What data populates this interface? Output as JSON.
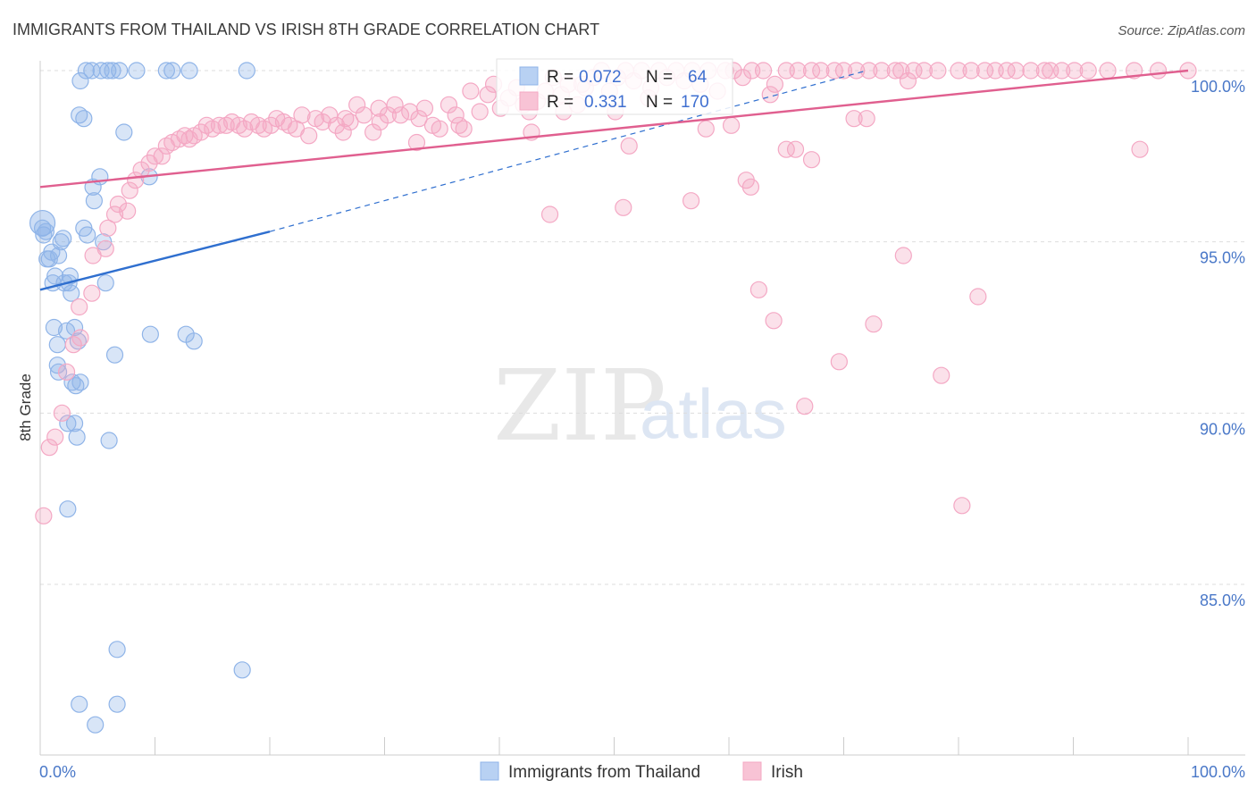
{
  "chart_data": {
    "type": "scatter",
    "title": "IMMIGRANTS FROM THAILAND VS IRISH 8TH GRADE CORRELATION CHART",
    "source": "Source: ZipAtlas.com",
    "xlabel": "",
    "ylabel": "8th Grade",
    "xlim": [
      0,
      100
    ],
    "ylim": [
      80.0,
      100.8
    ],
    "x_tick_labels": [
      "0.0%",
      "100.0%"
    ],
    "y_ticks": [
      {
        "value": 100,
        "label": "100.0%"
      },
      {
        "value": 95,
        "label": "95.0%"
      },
      {
        "value": 90,
        "label": "90.0%"
      },
      {
        "value": 85,
        "label": "85.0%"
      }
    ],
    "watermark": {
      "part1": "ZIP",
      "part2": "atlas"
    },
    "stats": {
      "r_label": "R =",
      "n_label": "N =",
      "rows": [
        {
          "r": "0.072",
          "n": "64"
        },
        {
          "r": "0.331",
          "n": "170"
        }
      ]
    },
    "series": [
      {
        "name": "Immigrants from Thailand",
        "color": "#8fb4e8",
        "line_color": "#2f6fcf",
        "trend": {
          "x0": 0,
          "y0": 93.6,
          "x1": 20,
          "y1": 95.3
        },
        "trend_dashed": {
          "x0": 20,
          "y0": 95.3,
          "x1": 72,
          "y1": 100.0
        },
        "points": [
          [
            0.2,
            95.4
          ],
          [
            0.3,
            95.2
          ],
          [
            0.5,
            95.3
          ],
          [
            0.6,
            94.5
          ],
          [
            0.8,
            94.5
          ],
          [
            1.0,
            94.7
          ],
          [
            1.1,
            93.8
          ],
          [
            1.3,
            94.0
          ],
          [
            1.6,
            94.6
          ],
          [
            1.8,
            95.0
          ],
          [
            2.0,
            95.1
          ],
          [
            2.1,
            93.8
          ],
          [
            2.5,
            93.8
          ],
          [
            2.6,
            94.0
          ],
          [
            2.7,
            93.5
          ],
          [
            1.2,
            92.5
          ],
          [
            1.5,
            92.0
          ],
          [
            2.3,
            92.4
          ],
          [
            3.0,
            92.5
          ],
          [
            3.3,
            92.1
          ],
          [
            1.5,
            91.4
          ],
          [
            1.6,
            91.2
          ],
          [
            2.8,
            90.9
          ],
          [
            3.1,
            90.8
          ],
          [
            3.5,
            90.9
          ],
          [
            2.4,
            89.7
          ],
          [
            3.0,
            89.7
          ],
          [
            3.2,
            89.3
          ],
          [
            6.0,
            89.2
          ],
          [
            2.4,
            87.2
          ],
          [
            3.5,
            99.7
          ],
          [
            4.0,
            100.0
          ],
          [
            4.5,
            100.0
          ],
          [
            5.3,
            100.0
          ],
          [
            5.9,
            100.0
          ],
          [
            6.3,
            100.0
          ],
          [
            6.9,
            100.0
          ],
          [
            8.4,
            100.0
          ],
          [
            11.0,
            100.0
          ],
          [
            11.5,
            100.0
          ],
          [
            13.0,
            100.0
          ],
          [
            18.0,
            100.0
          ],
          [
            3.4,
            98.7
          ],
          [
            3.8,
            98.6
          ],
          [
            7.3,
            98.2
          ],
          [
            5.2,
            96.9
          ],
          [
            4.6,
            96.6
          ],
          [
            4.7,
            96.2
          ],
          [
            9.5,
            96.9
          ],
          [
            3.8,
            95.4
          ],
          [
            4.1,
            95.2
          ],
          [
            5.5,
            95.0
          ],
          [
            5.7,
            93.8
          ],
          [
            9.6,
            92.3
          ],
          [
            12.7,
            92.3
          ],
          [
            13.4,
            92.1
          ],
          [
            6.5,
            91.7
          ],
          [
            6.7,
            83.1
          ],
          [
            17.6,
            82.5
          ],
          [
            3.4,
            81.5
          ],
          [
            6.7,
            81.5
          ],
          [
            4.8,
            80.9
          ]
        ]
      },
      {
        "name": "Irish",
        "color": "#f4a8c4",
        "line_color": "#e05f8f",
        "trend": {
          "x0": 0,
          "y0": 96.6,
          "x1": 100,
          "y1": 100.0
        },
        "points": [
          [
            0.3,
            87.0
          ],
          [
            0.8,
            89.0
          ],
          [
            1.3,
            89.3
          ],
          [
            1.9,
            90.0
          ],
          [
            2.3,
            91.2
          ],
          [
            2.9,
            92.0
          ],
          [
            3.5,
            92.2
          ],
          [
            3.4,
            93.1
          ],
          [
            4.5,
            93.5
          ],
          [
            4.6,
            94.6
          ],
          [
            5.7,
            94.8
          ],
          [
            5.9,
            95.4
          ],
          [
            6.5,
            95.8
          ],
          [
            7.6,
            95.9
          ],
          [
            6.8,
            96.1
          ],
          [
            7.8,
            96.5
          ],
          [
            8.3,
            96.8
          ],
          [
            8.8,
            97.1
          ],
          [
            9.5,
            97.3
          ],
          [
            10.0,
            97.5
          ],
          [
            10.6,
            97.5
          ],
          [
            11.0,
            97.8
          ],
          [
            11.5,
            97.9
          ],
          [
            12.1,
            98.0
          ],
          [
            12.6,
            98.1
          ],
          [
            13.0,
            98.0
          ],
          [
            13.4,
            98.1
          ],
          [
            14.0,
            98.2
          ],
          [
            14.5,
            98.4
          ],
          [
            15.0,
            98.3
          ],
          [
            15.6,
            98.4
          ],
          [
            16.2,
            98.4
          ],
          [
            16.7,
            98.5
          ],
          [
            17.3,
            98.4
          ],
          [
            17.8,
            98.3
          ],
          [
            18.4,
            98.5
          ],
          [
            19.0,
            98.4
          ],
          [
            19.5,
            98.3
          ],
          [
            20.1,
            98.4
          ],
          [
            20.6,
            98.6
          ],
          [
            21.2,
            98.5
          ],
          [
            21.7,
            98.4
          ],
          [
            22.3,
            98.3
          ],
          [
            22.8,
            98.7
          ],
          [
            23.4,
            98.1
          ],
          [
            24.0,
            98.6
          ],
          [
            24.6,
            98.5
          ],
          [
            25.2,
            98.7
          ],
          [
            25.8,
            98.4
          ],
          [
            26.4,
            98.2
          ],
          [
            27.0,
            98.5
          ],
          [
            27.6,
            99.0
          ],
          [
            28.2,
            98.7
          ],
          [
            29.0,
            98.2
          ],
          [
            29.6,
            98.5
          ],
          [
            30.3,
            98.7
          ],
          [
            30.9,
            99.0
          ],
          [
            31.4,
            98.7
          ],
          [
            32.2,
            98.8
          ],
          [
            32.8,
            97.9
          ],
          [
            33.5,
            98.9
          ],
          [
            34.2,
            98.4
          ],
          [
            34.8,
            98.3
          ],
          [
            35.6,
            99.0
          ],
          [
            36.2,
            98.7
          ],
          [
            36.9,
            98.3
          ],
          [
            37.5,
            99.4
          ],
          [
            38.3,
            98.8
          ],
          [
            39.0,
            99.3
          ],
          [
            39.5,
            99.6
          ],
          [
            40.1,
            98.9
          ],
          [
            40.8,
            99.2
          ],
          [
            41.5,
            99.5
          ],
          [
            42.1,
            99.0
          ],
          [
            42.6,
            98.8
          ],
          [
            43.3,
            99.1
          ],
          [
            44.0,
            99.4
          ],
          [
            44.7,
            99.8
          ],
          [
            45.4,
            99.3
          ],
          [
            46.0,
            99.6
          ],
          [
            46.8,
            99.0
          ],
          [
            47.5,
            99.5
          ],
          [
            48.2,
            99.8
          ],
          [
            48.9,
            100.0
          ],
          [
            49.6,
            99.4
          ],
          [
            50.3,
            99.8
          ],
          [
            51.0,
            100.0
          ],
          [
            51.7,
            99.7
          ],
          [
            52.4,
            100.0
          ],
          [
            53.2,
            99.5
          ],
          [
            53.9,
            100.0
          ],
          [
            54.6,
            99.8
          ],
          [
            55.4,
            100.0
          ],
          [
            56.1,
            99.7
          ],
          [
            56.8,
            100.0
          ],
          [
            57.5,
            99.6
          ],
          [
            58.2,
            100.0
          ],
          [
            59.0,
            99.4
          ],
          [
            59.7,
            100.0
          ],
          [
            60.4,
            100.0
          ],
          [
            61.2,
            99.8
          ],
          [
            62.0,
            100.0
          ],
          [
            63.0,
            100.0
          ],
          [
            64.0,
            99.6
          ],
          [
            65.0,
            100.0
          ],
          [
            66.0,
            100.0
          ],
          [
            67.2,
            100.0
          ],
          [
            68.0,
            100.0
          ],
          [
            69.2,
            100.0
          ],
          [
            70.0,
            100.0
          ],
          [
            71.1,
            100.0
          ],
          [
            72.2,
            100.0
          ],
          [
            73.3,
            100.0
          ],
          [
            74.5,
            100.0
          ],
          [
            75.0,
            100.0
          ],
          [
            76.1,
            100.0
          ],
          [
            77.0,
            100.0
          ],
          [
            78.2,
            100.0
          ],
          [
            80.0,
            100.0
          ],
          [
            81.1,
            100.0
          ],
          [
            82.3,
            100.0
          ],
          [
            83.2,
            100.0
          ],
          [
            84.2,
            100.0
          ],
          [
            85.0,
            100.0
          ],
          [
            86.3,
            100.0
          ],
          [
            87.5,
            100.0
          ],
          [
            88.0,
            100.0
          ],
          [
            89.0,
            100.0
          ],
          [
            90.1,
            100.0
          ],
          [
            91.3,
            100.0
          ],
          [
            93.0,
            100.0
          ],
          [
            95.3,
            100.0
          ],
          [
            97.4,
            100.0
          ],
          [
            100.0,
            100.0
          ],
          [
            47.2,
            99.6
          ],
          [
            53.0,
            99.2
          ],
          [
            63.6,
            99.3
          ],
          [
            75.6,
            99.7
          ],
          [
            42.8,
            98.2
          ],
          [
            50.1,
            98.8
          ],
          [
            60.2,
            98.4
          ],
          [
            58.0,
            98.3
          ],
          [
            72.0,
            98.6
          ],
          [
            70.9,
            98.6
          ],
          [
            45.6,
            98.8
          ],
          [
            36.5,
            98.4
          ],
          [
            33.0,
            98.6
          ],
          [
            29.5,
            98.9
          ],
          [
            26.6,
            98.6
          ],
          [
            51.3,
            97.8
          ],
          [
            65.0,
            97.7
          ],
          [
            65.8,
            97.7
          ],
          [
            67.2,
            97.4
          ],
          [
            95.8,
            97.7
          ],
          [
            61.5,
            96.8
          ],
          [
            61.9,
            96.6
          ],
          [
            56.7,
            96.2
          ],
          [
            50.8,
            96.0
          ],
          [
            44.4,
            95.8
          ],
          [
            75.2,
            94.6
          ],
          [
            62.6,
            93.6
          ],
          [
            81.7,
            93.4
          ],
          [
            63.9,
            92.7
          ],
          [
            72.6,
            92.6
          ],
          [
            69.6,
            91.5
          ],
          [
            78.5,
            91.1
          ],
          [
            66.6,
            90.2
          ],
          [
            80.3,
            87.3
          ]
        ]
      }
    ],
    "legend": [
      {
        "label": "Immigrants from Thailand",
        "color": "#b8d1f3"
      },
      {
        "label": "Irish",
        "color": "#f8c3d5"
      }
    ],
    "legend_position": "bottom-center",
    "stats_position": "top-center"
  }
}
